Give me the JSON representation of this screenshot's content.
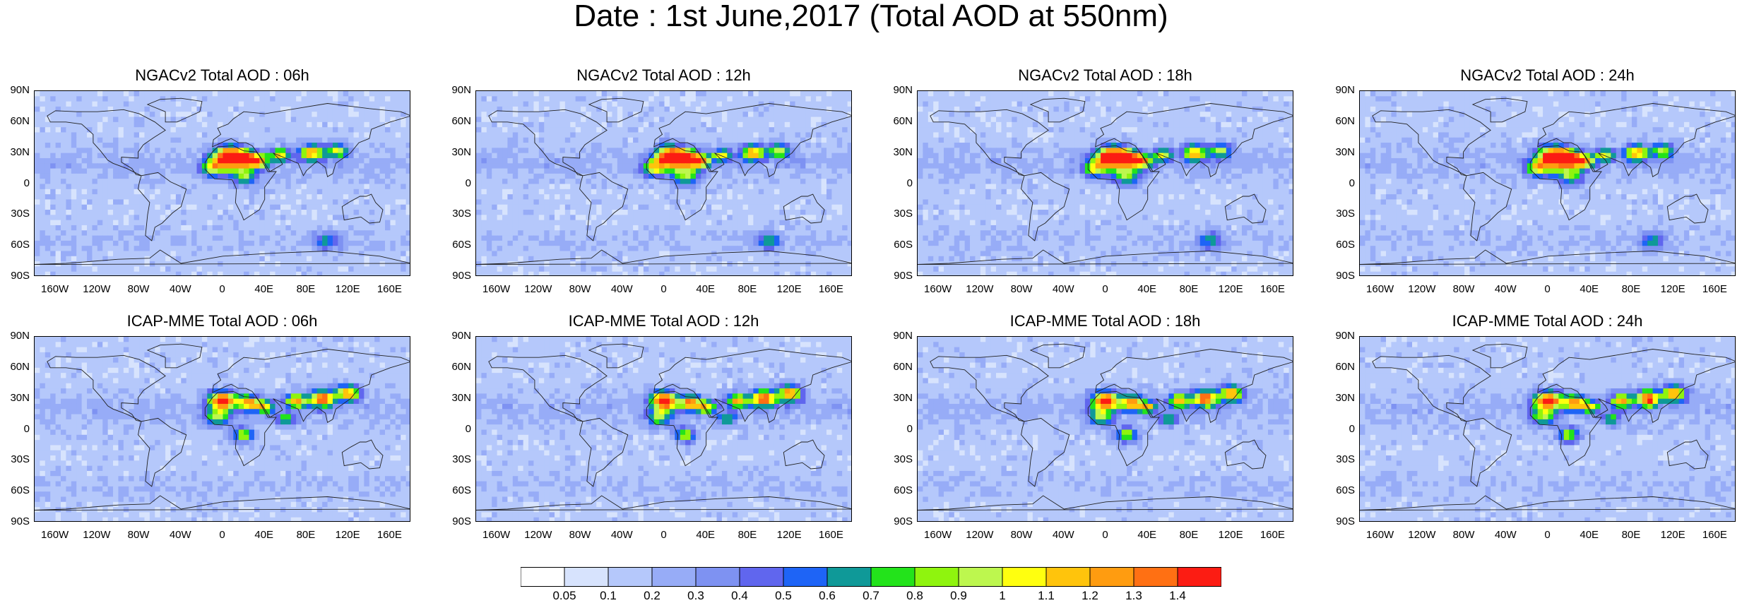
{
  "title": "Date : 1st June,2017 (Total AOD at 550nm)",
  "panels": [
    {
      "title": "NGACv2 Total AOD : 06h"
    },
    {
      "title": "NGACv2 Total AOD : 12h"
    },
    {
      "title": "NGACv2 Total AOD : 18h"
    },
    {
      "title": "NGACv2 Total AOD : 24h"
    },
    {
      "title": "ICAP-MME Total AOD : 06h"
    },
    {
      "title": "ICAP-MME Total AOD : 12h"
    },
    {
      "title": "ICAP-MME Total AOD : 18h"
    },
    {
      "title": "ICAP-MME Total AOD : 24h"
    }
  ],
  "lat_labels": [
    "90N",
    "60N",
    "30N",
    "0",
    "30S",
    "60S",
    "90S"
  ],
  "lon_labels": [
    "160W",
    "120W",
    "80W",
    "40W",
    "0",
    "40E",
    "80E",
    "120E",
    "160E"
  ],
  "colorbar": {
    "levels": [
      "0.05",
      "0.1",
      "0.2",
      "0.3",
      "0.4",
      "0.5",
      "0.6",
      "0.7",
      "0.8",
      "0.9",
      "1",
      "1.1",
      "1.2",
      "1.3",
      "1.4"
    ],
    "colors": [
      "#ffffff",
      "#d7e3fd",
      "#b5c8fb",
      "#97acf7",
      "#7e92f2",
      "#6066ee",
      "#1e64f6",
      "#0f9998",
      "#23e31b",
      "#8ff40e",
      "#bdf74e",
      "#ffff0f",
      "#ffc40c",
      "#ff9c10",
      "#ff7013",
      "#fc1c13"
    ]
  }
}
